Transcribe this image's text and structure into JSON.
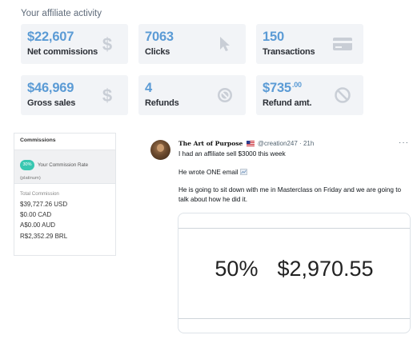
{
  "activity": {
    "heading": "Your affiliate activity",
    "cards": [
      {
        "value": "$22,607",
        "label": "Net commissions",
        "icon": "dollar-icon"
      },
      {
        "value": "7063",
        "label": "Clicks",
        "icon": "cursor-icon"
      },
      {
        "value": "150",
        "label": "Transactions",
        "icon": "credit-card-icon"
      },
      {
        "value": "$46,969",
        "label": "Gross sales",
        "icon": "dollar-icon"
      },
      {
        "value": "4",
        "label": "Refunds",
        "icon": "no-entry-icon"
      },
      {
        "value": "$735",
        "value_cents": ".00",
        "label": "Refund amt.",
        "icon": "no-entry-icon"
      }
    ],
    "icon_color": "#c9ced6",
    "value_color": "#5b9bd5"
  },
  "commissions": {
    "title": "Commissions",
    "rate_badge": "30%",
    "rate_label": "Your Commission Rate",
    "rate_tier": "(platinum)",
    "total_label": "Total Commission",
    "amounts": [
      "$39,727.26 USD",
      "$0.00 CAD",
      "A$0.00 AUD",
      "R$2,352.29 BRL"
    ],
    "badge_color": "#38c7b1"
  },
  "tweet": {
    "name": "The Art of Purpose",
    "handle": "@creation247",
    "separator": "·",
    "time": "21h",
    "more": "···",
    "lines": [
      "I had an affiliate sell $3000 this week",
      "He wrote ONE email",
      "He is going to sit down with me in Masterclass on Friday and we are going to talk about how he did it."
    ],
    "media": {
      "percent": "50%",
      "amount": "$2,970.55"
    }
  }
}
